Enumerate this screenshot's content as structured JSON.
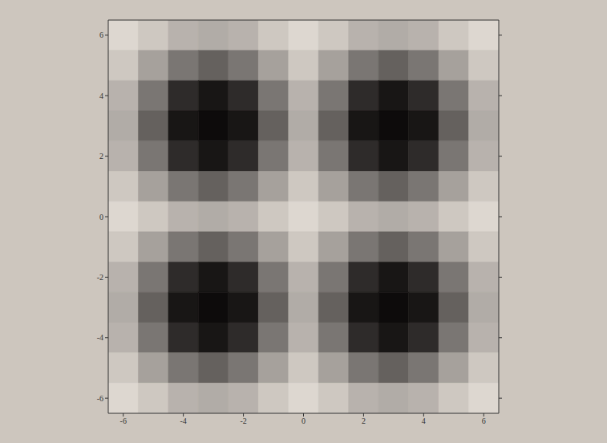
{
  "chart_data": {
    "type": "heatmap",
    "xlim": [
      -6.5,
      6.5
    ],
    "ylim": [
      -6.5,
      6.5
    ],
    "xticks": [
      -6,
      -4,
      -2,
      0,
      2,
      4,
      6
    ],
    "yticks": [
      -6,
      -4,
      -2,
      0,
      2,
      4,
      6
    ],
    "grid": false,
    "color": "#0d0b0b",
    "cells": {
      "x": [
        -6,
        -5,
        -4,
        -3,
        -2,
        -1,
        0,
        1,
        2,
        3,
        4,
        5,
        6
      ],
      "y": [
        6,
        5,
        4,
        3,
        2,
        1,
        0,
        -1,
        -2,
        -3,
        -4,
        -5,
        -6
      ],
      "values": [
        [
          0.05,
          0.12,
          0.22,
          0.25,
          0.22,
          0.12,
          0.05,
          0.12,
          0.22,
          0.25,
          0.22,
          0.12,
          0.05
        ],
        [
          0.12,
          0.3,
          0.5,
          0.6,
          0.5,
          0.3,
          0.12,
          0.3,
          0.5,
          0.6,
          0.5,
          0.3,
          0.12
        ],
        [
          0.22,
          0.5,
          0.85,
          0.95,
          0.85,
          0.5,
          0.22,
          0.5,
          0.85,
          0.95,
          0.85,
          0.5,
          0.22
        ],
        [
          0.25,
          0.6,
          0.95,
          1.0,
          0.95,
          0.6,
          0.25,
          0.6,
          0.95,
          1.0,
          0.95,
          0.6,
          0.25
        ],
        [
          0.22,
          0.5,
          0.85,
          0.95,
          0.85,
          0.5,
          0.22,
          0.5,
          0.85,
          0.95,
          0.85,
          0.5,
          0.22
        ],
        [
          0.12,
          0.3,
          0.5,
          0.6,
          0.5,
          0.3,
          0.12,
          0.3,
          0.5,
          0.6,
          0.5,
          0.3,
          0.12
        ],
        [
          0.05,
          0.12,
          0.22,
          0.25,
          0.22,
          0.12,
          0.05,
          0.12,
          0.22,
          0.25,
          0.22,
          0.12,
          0.05
        ],
        [
          0.12,
          0.3,
          0.5,
          0.6,
          0.5,
          0.3,
          0.12,
          0.3,
          0.5,
          0.6,
          0.5,
          0.3,
          0.12
        ],
        [
          0.22,
          0.5,
          0.85,
          0.95,
          0.85,
          0.5,
          0.22,
          0.5,
          0.85,
          0.95,
          0.85,
          0.5,
          0.22
        ],
        [
          0.25,
          0.6,
          0.95,
          1.0,
          0.95,
          0.6,
          0.25,
          0.6,
          0.95,
          1.0,
          0.95,
          0.6,
          0.25
        ],
        [
          0.22,
          0.5,
          0.85,
          0.95,
          0.85,
          0.5,
          0.22,
          0.5,
          0.85,
          0.95,
          0.85,
          0.5,
          0.22
        ],
        [
          0.12,
          0.3,
          0.5,
          0.6,
          0.5,
          0.3,
          0.12,
          0.3,
          0.5,
          0.6,
          0.5,
          0.3,
          0.12
        ],
        [
          0.05,
          0.12,
          0.22,
          0.25,
          0.22,
          0.12,
          0.05,
          0.12,
          0.22,
          0.25,
          0.22,
          0.12,
          0.05
        ]
      ]
    }
  }
}
